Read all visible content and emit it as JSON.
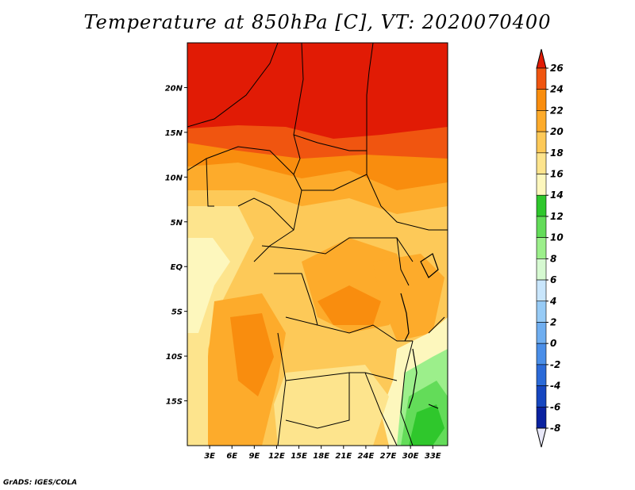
{
  "title": "Temperature at 850hPa [C], VT: 2020070400",
  "credit": "GrADS: IGES/COLA",
  "map": {
    "lon_range": [
      0,
      35
    ],
    "lat_range": [
      -20,
      25
    ],
    "x_ticks": [
      {
        "lon": 3,
        "label": "3E"
      },
      {
        "lon": 6,
        "label": "6E"
      },
      {
        "lon": 9,
        "label": "9E"
      },
      {
        "lon": 12,
        "label": "12E"
      },
      {
        "lon": 15,
        "label": "15E"
      },
      {
        "lon": 18,
        "label": "18E"
      },
      {
        "lon": 21,
        "label": "21E"
      },
      {
        "lon": 24,
        "label": "24E"
      },
      {
        "lon": 27,
        "label": "27E"
      },
      {
        "lon": 30,
        "label": "30E"
      },
      {
        "lon": 33,
        "label": "33E"
      }
    ],
    "y_ticks": [
      {
        "lat": 20,
        "label": "20N"
      },
      {
        "lat": 15,
        "label": "15N"
      },
      {
        "lat": 10,
        "label": "10N"
      },
      {
        "lat": 5,
        "label": "5N"
      },
      {
        "lat": 0,
        "label": "EQ"
      },
      {
        "lat": -5,
        "label": "5S"
      },
      {
        "lat": -10,
        "label": "10S"
      },
      {
        "lat": -15,
        "label": "15S"
      }
    ]
  },
  "colorbar": {
    "levels": [
      "26",
      "24",
      "22",
      "20",
      "18",
      "16",
      "14",
      "12",
      "10",
      "8",
      "6",
      "4",
      "2",
      "0",
      "-2",
      "-4",
      "-6",
      "-8"
    ],
    "colors": [
      "#e11b05",
      "#f05510",
      "#f98d0e",
      "#fdab2b",
      "#fdc958",
      "#fde48d",
      "#fdf7bd",
      "#2fc72c",
      "#63dc59",
      "#9cef8b",
      "#d6f9d1",
      "#c9e6fc",
      "#97cbf6",
      "#6faef0",
      "#4a8ee8",
      "#2b6ad8",
      "#1646c0",
      "#0a22a0",
      "#08107a"
    ]
  }
}
